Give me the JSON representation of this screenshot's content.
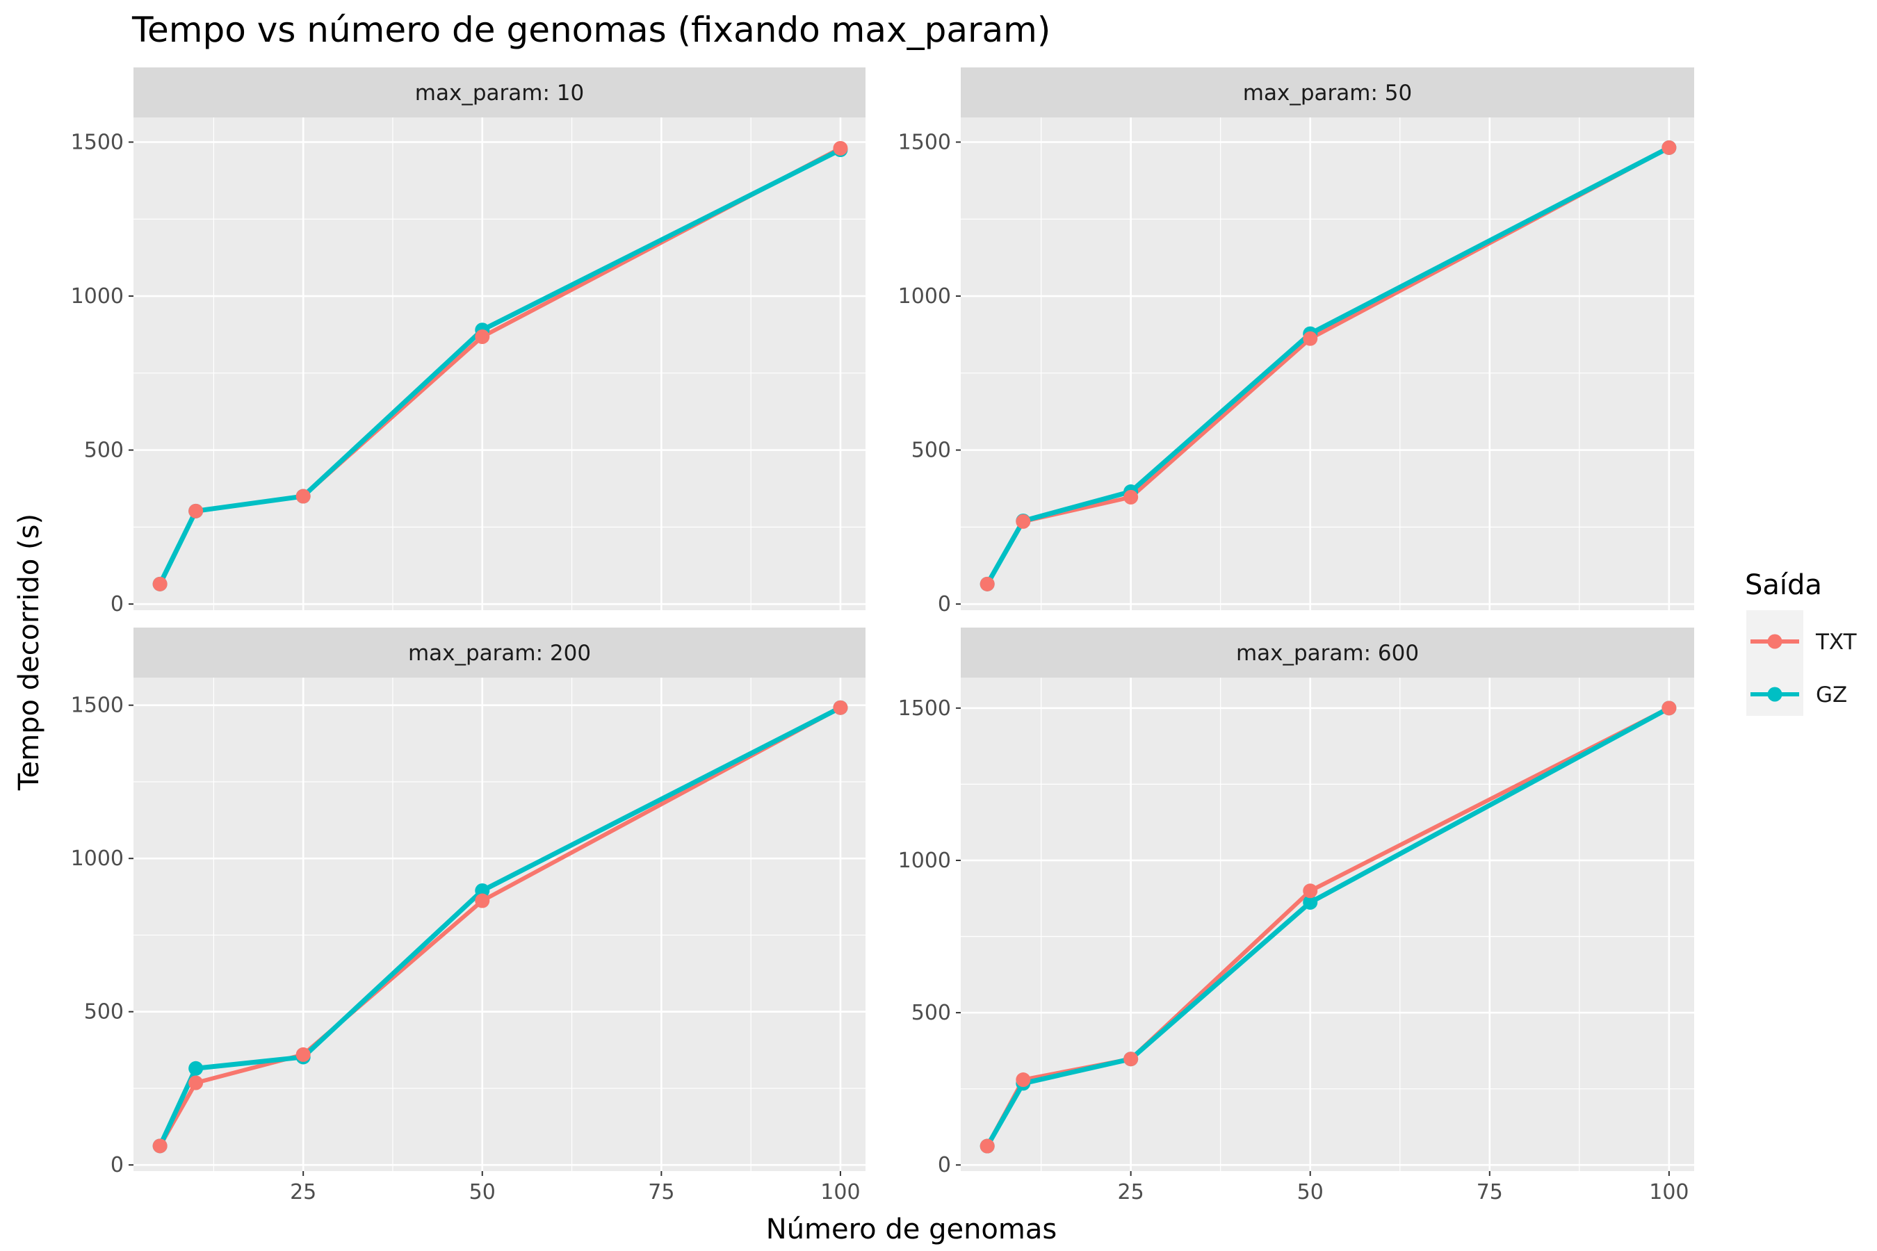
{
  "title": "Tempo vs número de genomas (fixando max_param)",
  "colors": {
    "panel_bg": "#EBEBEB",
    "strip_bg": "#D9D9D9",
    "grid": "#FFFFFF",
    "TXT": "#F8766D",
    "GZ": "#00BFC4"
  },
  "chart_data": {
    "type": "line",
    "facet_by": "max_param",
    "xlabel": "Número de genomas",
    "ylabel": "Tempo decorrido (s)",
    "xlim": [
      1.3,
      103.5
    ],
    "x_ticks": [
      25,
      50,
      75,
      100
    ],
    "y_ticks": [
      0,
      500,
      1000,
      1500
    ],
    "grid": true,
    "legend": {
      "title": "Saída",
      "position": "right",
      "entries": [
        "TXT",
        "GZ"
      ]
    },
    "facets": [
      {
        "label": "max_param: 10",
        "ylim": [
          -20,
          1580
        ],
        "series": [
          {
            "name": "TXT",
            "x": [
              5,
              10,
              25,
              50,
              100
            ],
            "y": [
              65,
              302,
              350,
              868,
              1480
            ]
          },
          {
            "name": "GZ",
            "x": [
              5,
              10,
              25,
              50,
              100
            ],
            "y": [
              65,
              302,
              350,
              890,
              1475
            ]
          }
        ]
      },
      {
        "label": "max_param: 50",
        "ylim": [
          -20,
          1580
        ],
        "series": [
          {
            "name": "TXT",
            "x": [
              5,
              10,
              25,
              50,
              100
            ],
            "y": [
              65,
              268,
              347,
              862,
              1482
            ]
          },
          {
            "name": "GZ",
            "x": [
              5,
              10,
              25,
              50,
              100
            ],
            "y": [
              65,
              270,
              365,
              878,
              1482
            ]
          }
        ]
      },
      {
        "label": "max_param: 200",
        "ylim": [
          -20,
          1590
        ],
        "series": [
          {
            "name": "TXT",
            "x": [
              5,
              10,
              25,
              50,
              100
            ],
            "y": [
              62,
              268,
              360,
              862,
              1492
            ]
          },
          {
            "name": "GZ",
            "x": [
              5,
              10,
              25,
              50,
              100
            ],
            "y": [
              62,
              315,
              352,
              895,
              1492
            ]
          }
        ]
      },
      {
        "label": "max_param: 600",
        "ylim": [
          -20,
          1600
        ],
        "series": [
          {
            "name": "TXT",
            "x": [
              5,
              10,
              25,
              50,
              100
            ],
            "y": [
              62,
              280,
              348,
              900,
              1500
            ]
          },
          {
            "name": "GZ",
            "x": [
              5,
              10,
              25,
              50,
              100
            ],
            "y": [
              62,
              268,
              348,
              862,
              1500
            ]
          }
        ]
      }
    ]
  }
}
